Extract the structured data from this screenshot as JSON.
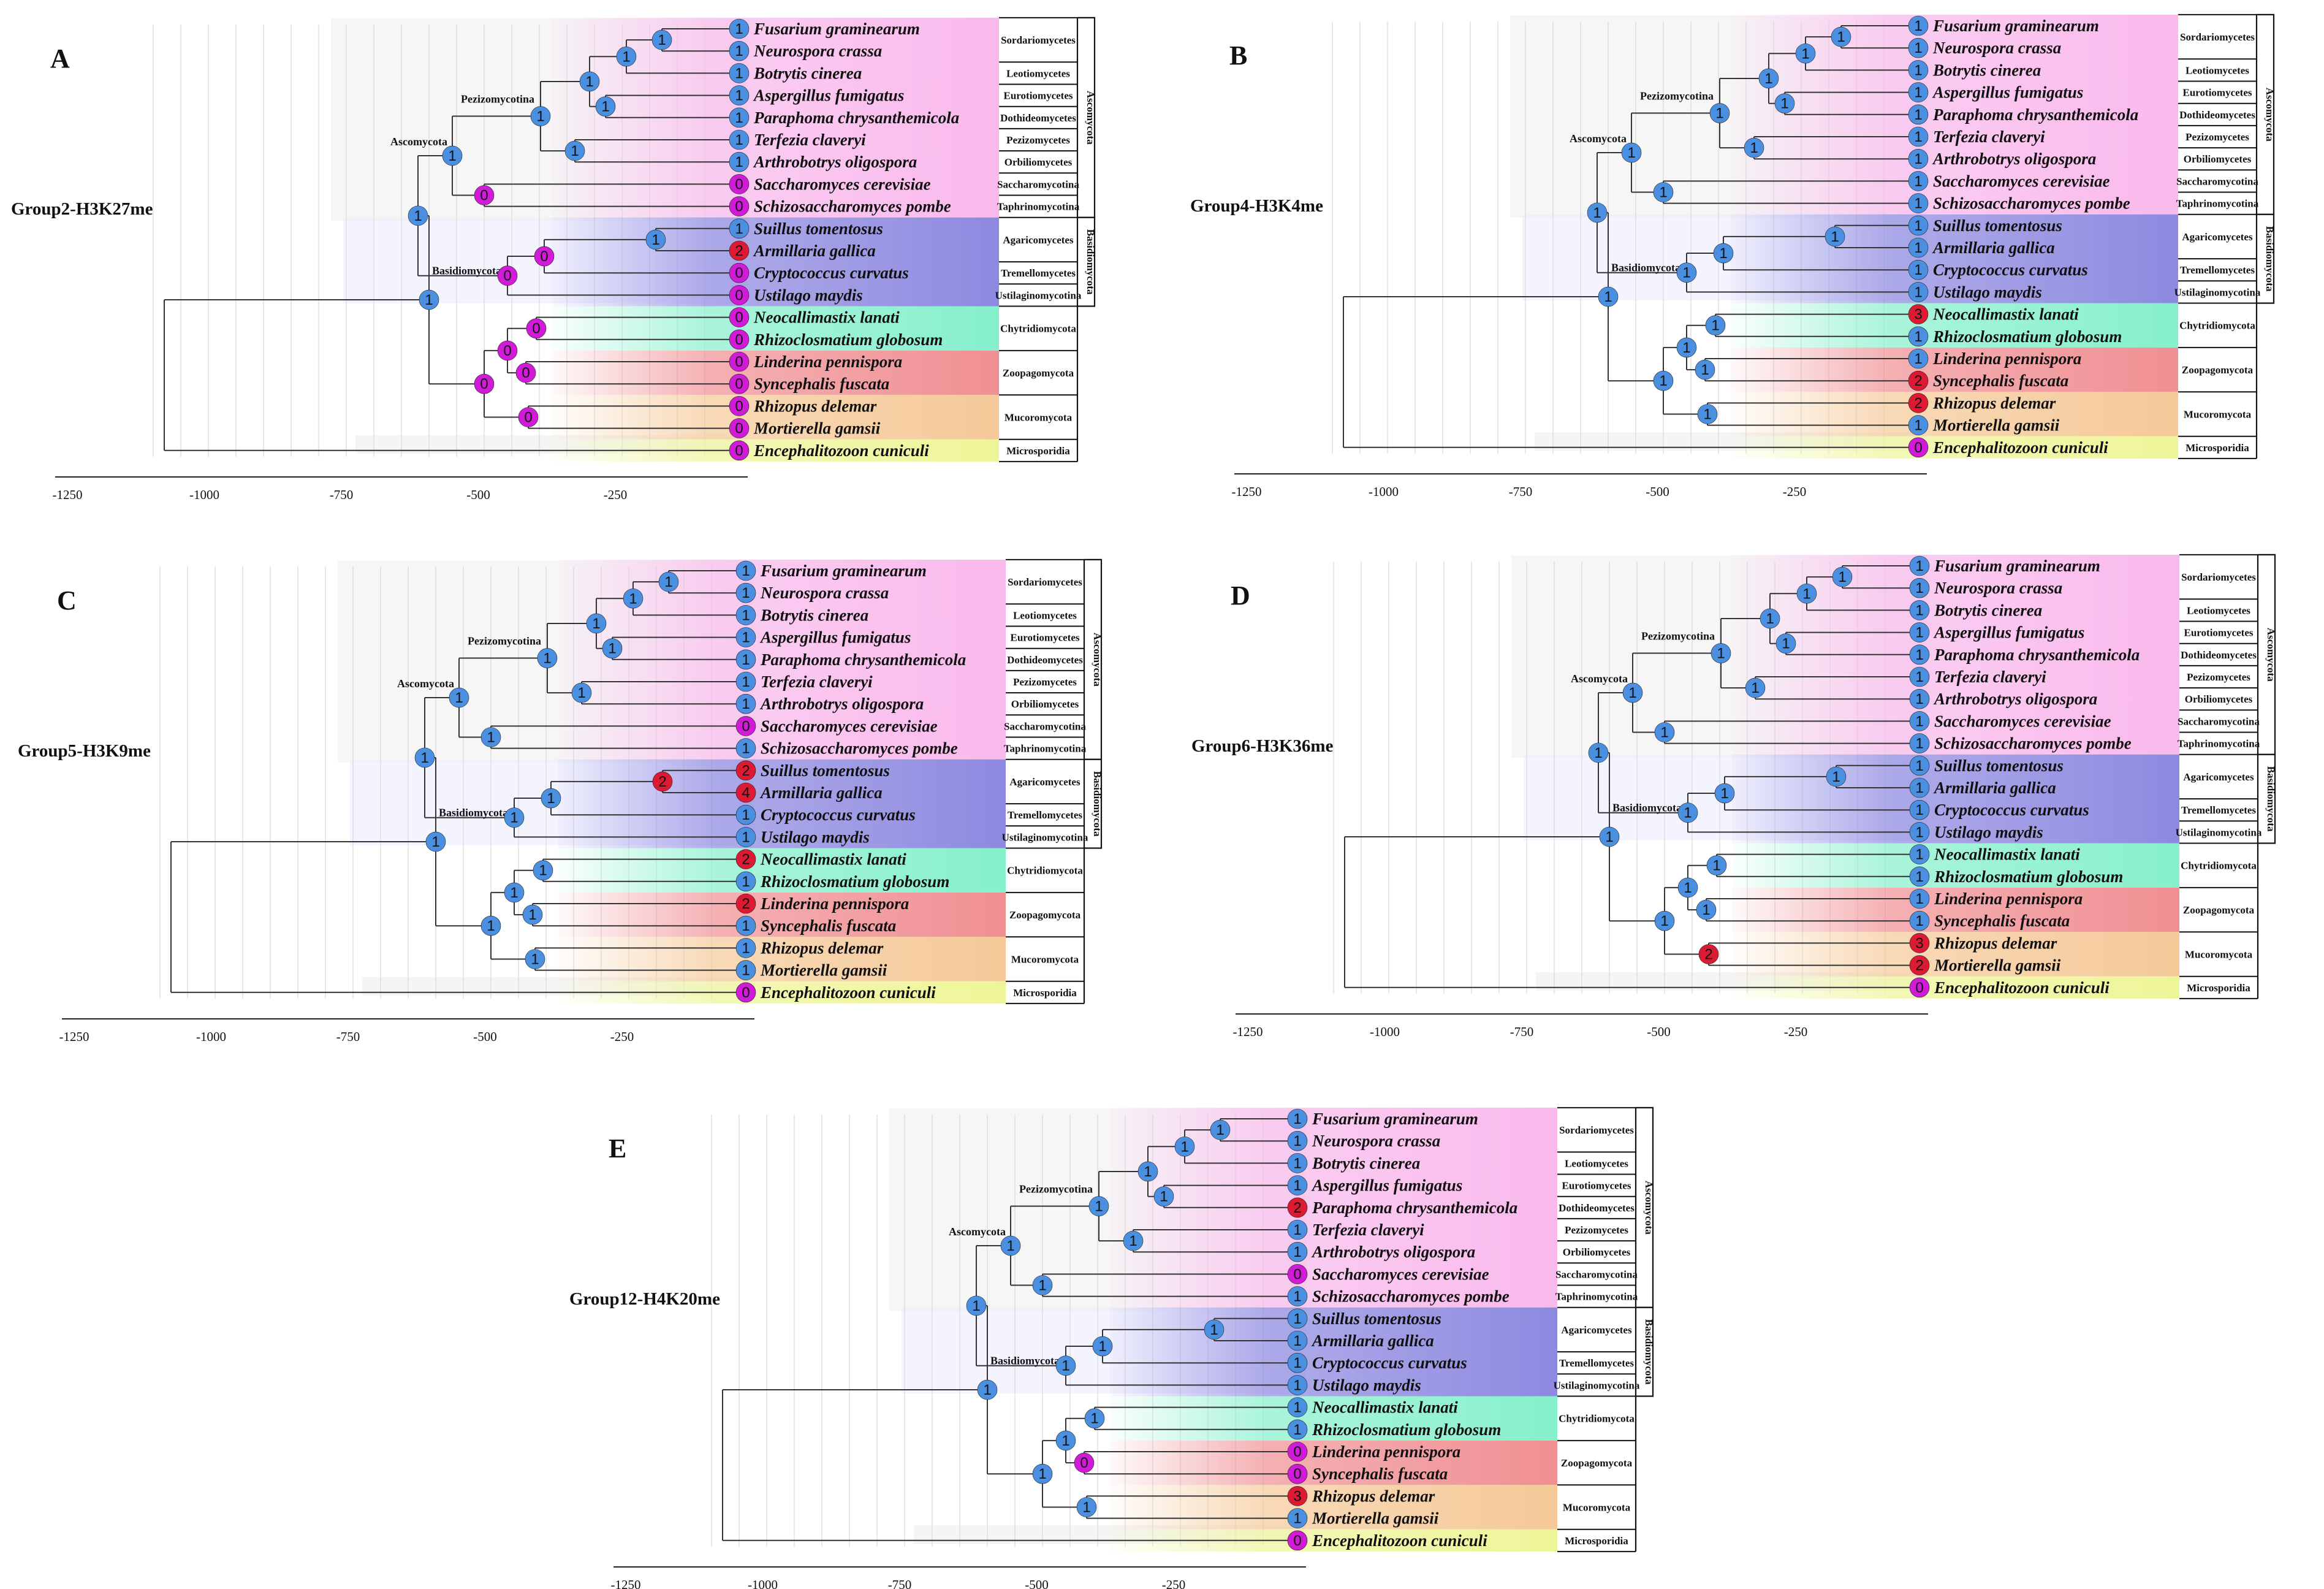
{
  "colors": {
    "blue_node": "#4a8fe0",
    "red_node": "#dd1a33",
    "magenta_node": "#d21bd8",
    "ascomycota_bg": "#f9b9ec",
    "basidiomycota_bg": "#8d89e0",
    "chytrid_bg": "#86f0cc",
    "zoopago_bg": "#f08f93",
    "mucoro_bg": "#f5c998",
    "microsp_bg": "#eef598"
  },
  "species": [
    "Fusarium graminearum",
    "Neurospora crassa",
    "Botrytis cinerea",
    "Aspergillus fumigatus",
    "Paraphoma chrysanthemicola",
    "Terfezia claveryi",
    "Arthrobotrys oligospora",
    "Saccharomyces cerevisiae",
    "Schizosaccharomyces pombe",
    "Suillus tomentosus",
    "Armillaria gallica",
    "Cryptococcus curvatus",
    "Ustilago maydis",
    "Neocallimastix lanati",
    "Rhizoclosmatium globosum",
    "Linderina pennispora",
    "Syncephalis fuscata",
    "Rhizopus delemar",
    "Mortierella gamsii",
    "Encephalitozoon cuniculi"
  ],
  "classes": [
    {
      "label": "Sordariomycetes",
      "rows": [
        0,
        1
      ]
    },
    {
      "label": "Leotiomycetes",
      "rows": [
        2,
        2
      ]
    },
    {
      "label": "Eurotiomycetes",
      "rows": [
        3,
        3
      ]
    },
    {
      "label": "Dothideomycetes",
      "rows": [
        4,
        4
      ]
    },
    {
      "label": "Pezizomycetes",
      "rows": [
        5,
        5
      ]
    },
    {
      "label": "Orbiliomycetes",
      "rows": [
        6,
        6
      ]
    },
    {
      "label": "Saccharomycotina",
      "rows": [
        7,
        7
      ]
    },
    {
      "label": "Taphrinomycotina",
      "rows": [
        8,
        8
      ]
    },
    {
      "label": "Agaricomycetes",
      "rows": [
        9,
        10
      ]
    },
    {
      "label": "Tremellomycetes",
      "rows": [
        11,
        11
      ]
    },
    {
      "label": "Ustilaginomycotina",
      "rows": [
        12,
        12
      ]
    },
    {
      "label": "Chytridiomycota",
      "rows": [
        13,
        14
      ]
    },
    {
      "label": "Zoopagomycota",
      "rows": [
        15,
        16
      ]
    },
    {
      "label": "Mucoromycota",
      "rows": [
        17,
        18
      ]
    },
    {
      "label": "Microsporidia",
      "rows": [
        19,
        19
      ]
    }
  ],
  "phyla": [
    {
      "label": "Ascomycota",
      "rows": [
        0,
        8
      ]
    },
    {
      "label": "Basidiomycota",
      "rows": [
        9,
        12
      ]
    }
  ],
  "clade_labels": {
    "ascomycota": "Ascomycota",
    "pezizomycotina": "Pezizomycotina",
    "basidiomycota": "Basidiomycota"
  },
  "axis_ticks": [
    "-1250",
    "-1000",
    "-750",
    "-500",
    "-250"
  ],
  "panels": [
    {
      "letter": "A",
      "group": "Group2-H3K27me",
      "tips": [
        1,
        1,
        1,
        1,
        1,
        1,
        1,
        0,
        0,
        1,
        2,
        0,
        0,
        0,
        0,
        0,
        0,
        0,
        0,
        0
      ],
      "nodes": {
        "root": 1,
        "opis": 1,
        "asco": 1,
        "pez": 1,
        "p_sord": 1,
        "p_fn": 1,
        "p_ba": 1,
        "p_ap": 1,
        "p_ta": 1,
        "p_ss": 0,
        "bas": 0,
        "b_cu": 0,
        "b_sa": 1,
        "basal": 0,
        "b2": 0,
        "c_cl": 0,
        "z_cl": 0,
        "m_cl": 0
      }
    },
    {
      "letter": "B",
      "group": "Group4-H3K4me",
      "tips": [
        1,
        1,
        1,
        1,
        1,
        1,
        1,
        1,
        1,
        1,
        1,
        1,
        1,
        3,
        1,
        1,
        2,
        2,
        1,
        0
      ],
      "nodes": {
        "root": 1,
        "opis": 1,
        "asco": 1,
        "pez": 1,
        "p_sord": 1,
        "p_fn": 1,
        "p_ba": 1,
        "p_ap": 1,
        "p_ta": 1,
        "p_ss": 1,
        "bas": 1,
        "b_cu": 1,
        "b_sa": 1,
        "basal": 1,
        "b2": 1,
        "c_cl": 1,
        "z_cl": 1,
        "m_cl": 1
      }
    },
    {
      "letter": "C",
      "group": "Group5-H3K9me",
      "tips": [
        1,
        1,
        1,
        1,
        1,
        1,
        1,
        0,
        1,
        2,
        4,
        1,
        1,
        2,
        1,
        2,
        1,
        1,
        1,
        0
      ],
      "nodes": {
        "root": 1,
        "opis": 1,
        "asco": 1,
        "pez": 1,
        "p_sord": 1,
        "p_fn": 1,
        "p_ba": 1,
        "p_ap": 1,
        "p_ta": 1,
        "p_ss": 1,
        "bas": 1,
        "b_cu": 1,
        "b_sa": 2,
        "basal": 1,
        "b2": 1,
        "c_cl": 1,
        "z_cl": 1,
        "m_cl": 1
      }
    },
    {
      "letter": "D",
      "group": "Group6-H3K36me",
      "tips": [
        1,
        1,
        1,
        1,
        1,
        1,
        1,
        1,
        1,
        1,
        1,
        1,
        1,
        1,
        1,
        1,
        1,
        3,
        2,
        0
      ],
      "nodes": {
        "root": 1,
        "opis": 1,
        "asco": 1,
        "pez": 1,
        "p_sord": 1,
        "p_fn": 1,
        "p_ba": 1,
        "p_ap": 1,
        "p_ta": 1,
        "p_ss": 1,
        "bas": 1,
        "b_cu": 1,
        "b_sa": 1,
        "basal": 1,
        "b2": 1,
        "c_cl": 1,
        "z_cl": 1,
        "m_cl": 2
      }
    },
    {
      "letter": "E",
      "group": "Group12-H4K20me",
      "tips": [
        1,
        1,
        1,
        1,
        2,
        1,
        1,
        0,
        1,
        1,
        1,
        1,
        1,
        1,
        1,
        0,
        0,
        3,
        1,
        0
      ],
      "nodes": {
        "root": 1,
        "opis": 1,
        "asco": 1,
        "pez": 1,
        "p_sord": 1,
        "p_fn": 1,
        "p_ba": 1,
        "p_ap": 1,
        "p_ta": 1,
        "p_ss": 1,
        "bas": 1,
        "b_cu": 1,
        "b_sa": 1,
        "basal": 1,
        "b2": 1,
        "c_cl": 1,
        "z_cl": 0,
        "m_cl": 1
      }
    }
  ]
}
